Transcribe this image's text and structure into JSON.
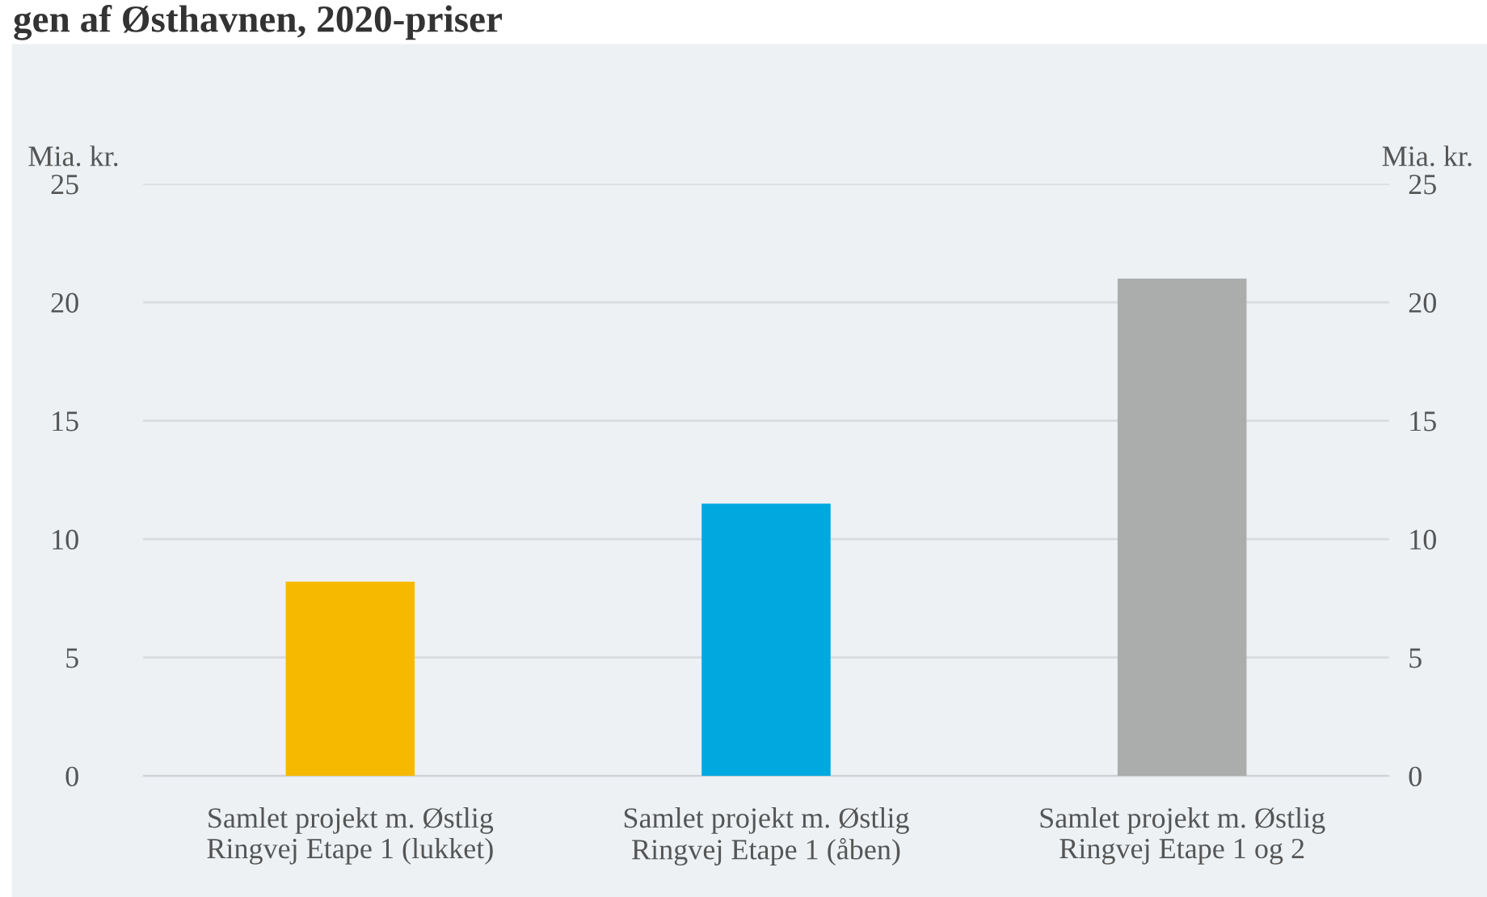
{
  "chart_data": {
    "type": "bar",
    "title": "gen af Østhavnen, 2020-priser",
    "categories": [
      "Samlet projekt m. Østlig\nRingvej Etape 1 (lukket)",
      "Samlet projekt m. Østlig\nRingvej Etape 1 (åben)",
      "Samlet projekt m. Østlig\nRingvej Etape 1 og 2"
    ],
    "values": [
      8.2,
      11.5,
      21.0
    ],
    "colors": [
      "#f7b900",
      "#00a8e0",
      "#abadac"
    ],
    "ylabel": "Mia. kr.",
    "y2label": "Mia. kr.",
    "ylim": [
      0,
      25
    ],
    "yticks": [
      0,
      5,
      10,
      15,
      20,
      25
    ],
    "y2lim": [
      0,
      25
    ],
    "y2ticks": [
      0,
      5,
      10,
      15,
      20,
      25
    ],
    "grid": "y",
    "legend": false
  }
}
